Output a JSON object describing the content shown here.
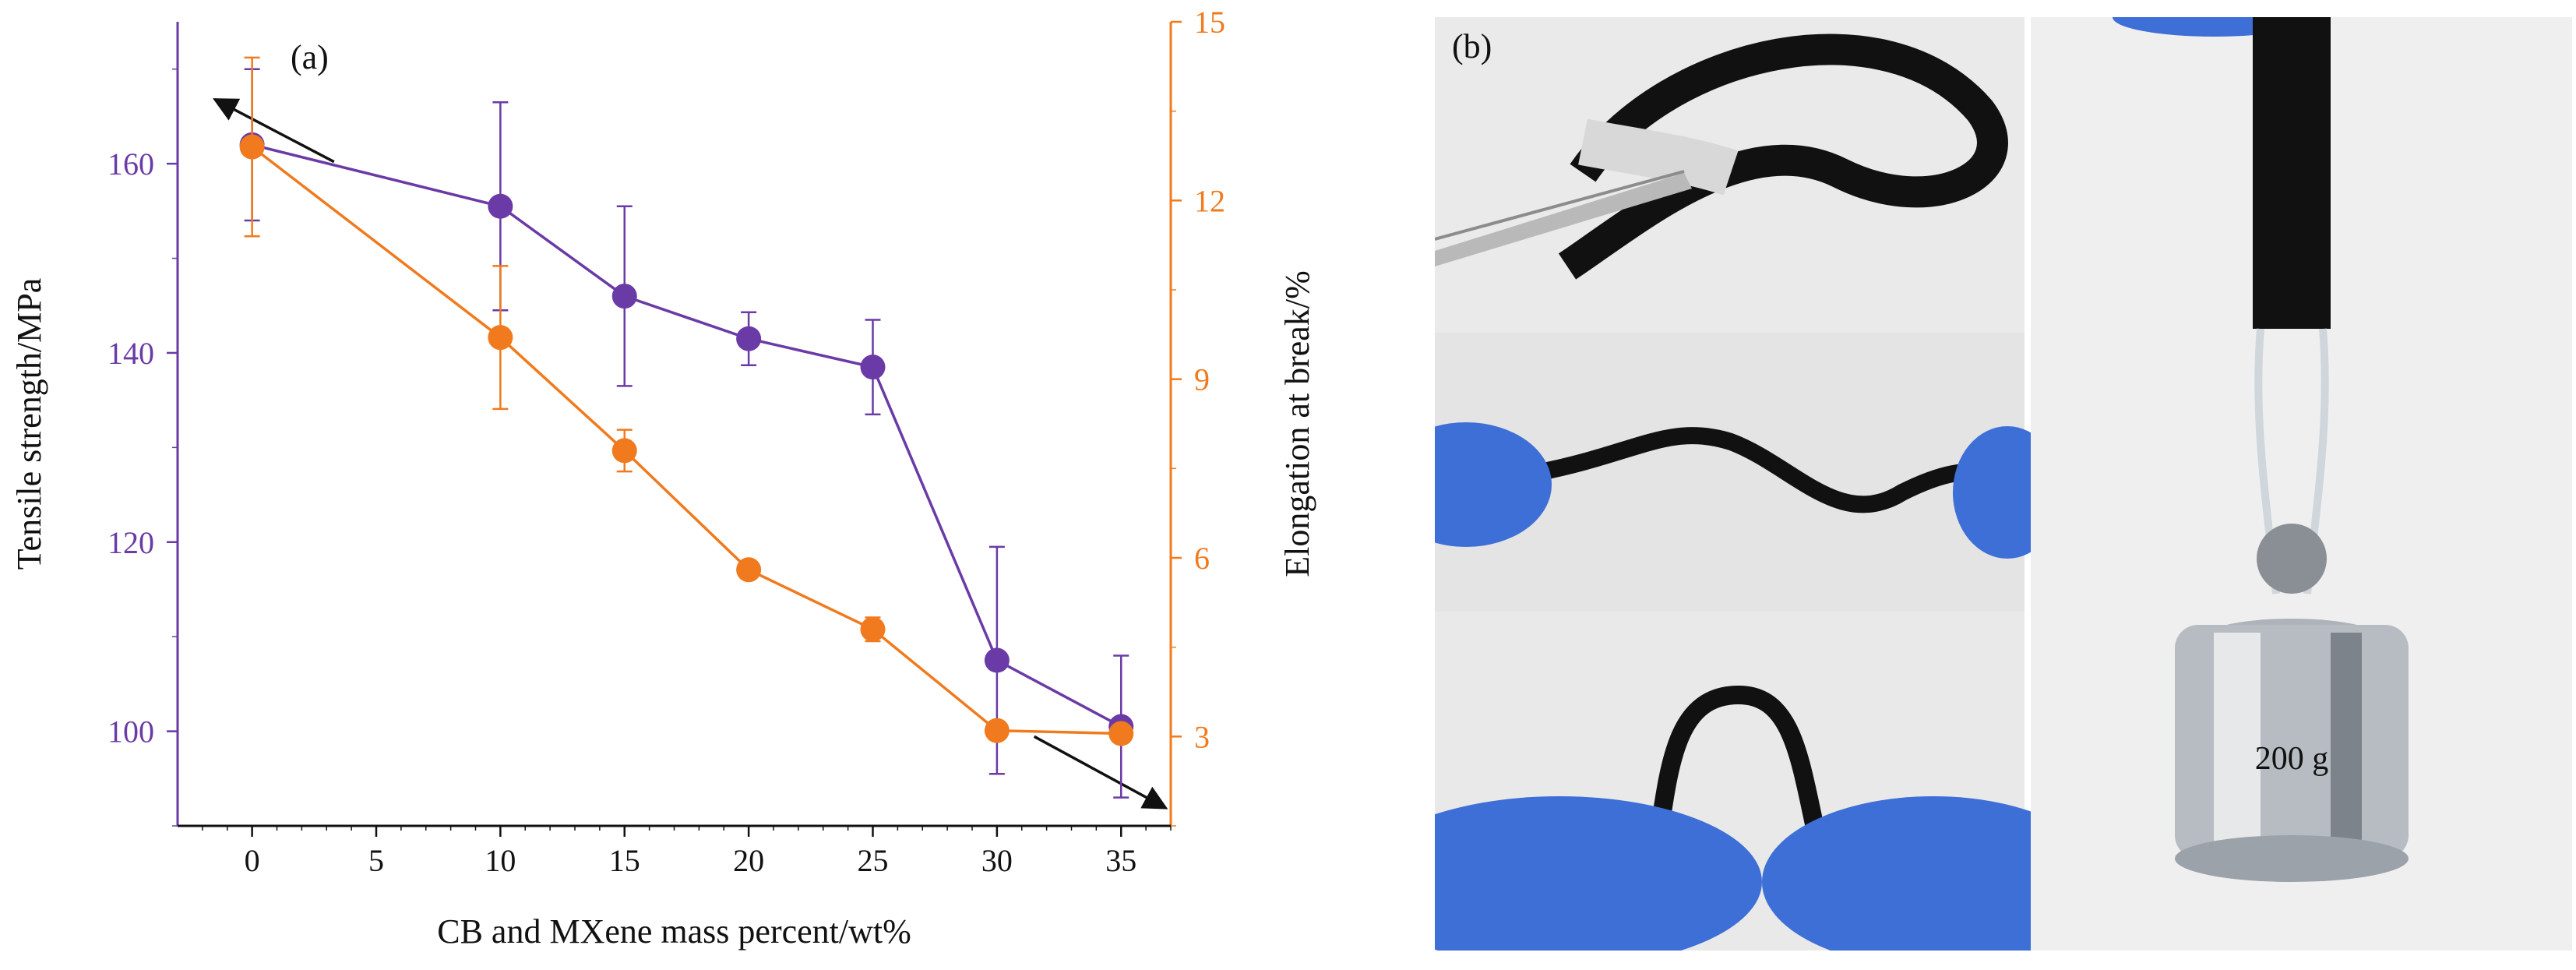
{
  "chart_data": {
    "type": "line",
    "panel_label": "(a)",
    "xlabel": "CB and MXene mass percent/wt%",
    "ylabel_left": "Tensile strength/MPa",
    "ylabel_right": "Elongation at break/%",
    "x_ticks": [
      0,
      5,
      10,
      15,
      20,
      25,
      30,
      35
    ],
    "xlim": [
      -3,
      37
    ],
    "y_left_ticks": [
      100,
      120,
      140,
      160
    ],
    "y_left_lim": [
      90,
      175
    ],
    "y_right_ticks": [
      3,
      6,
      9,
      12,
      15
    ],
    "y_right_lim": [
      1.5,
      15
    ],
    "grid": false,
    "colors": {
      "left": "#6a3aa6",
      "right": "#f07a1d"
    },
    "series": [
      {
        "axis": "left",
        "x": [
          0,
          10,
          15,
          20,
          25,
          30,
          35
        ],
        "y": [
          162,
          155.5,
          146,
          141.5,
          138.5,
          107.5,
          100.5
        ],
        "err": [
          8,
          11,
          9.5,
          2.8,
          5,
          12,
          7.5
        ]
      },
      {
        "axis": "right",
        "x": [
          0,
          10,
          15,
          20,
          25,
          30,
          35
        ],
        "y": [
          12.9,
          9.7,
          7.8,
          5.8,
          4.8,
          3.1,
          3.05
        ],
        "err": [
          1.5,
          1.2,
          0.35,
          0.1,
          0.2,
          0.1,
          0.05
        ]
      }
    ]
  },
  "photo_panel": {
    "label": "(b)",
    "weight_label": "200 g"
  }
}
